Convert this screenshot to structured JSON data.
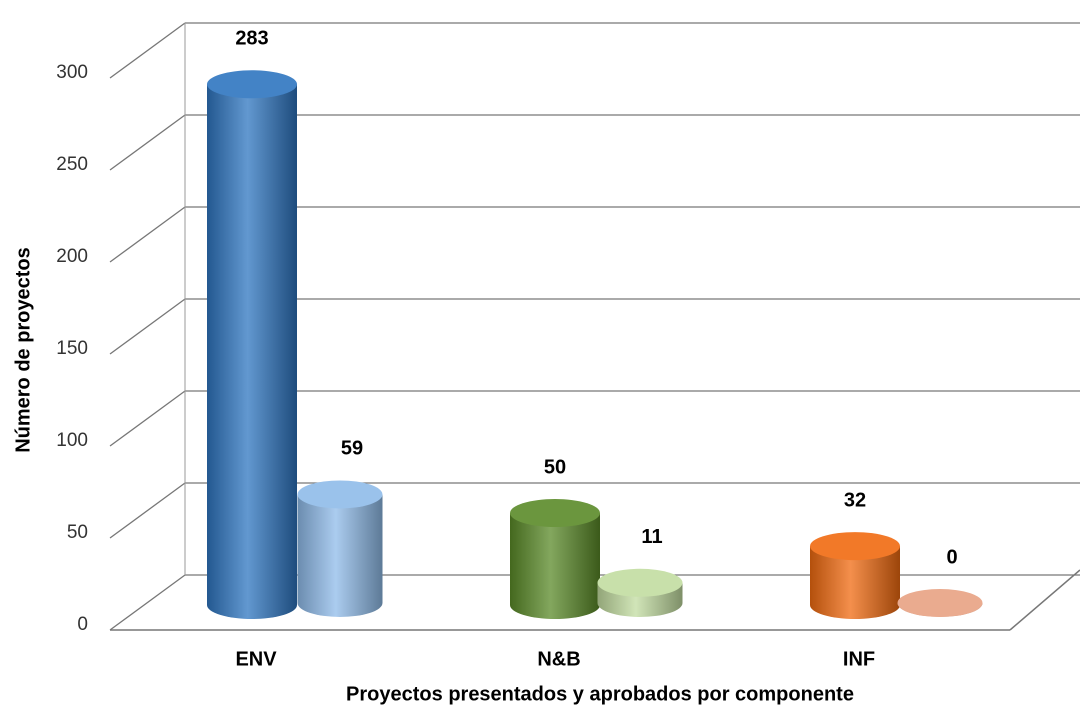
{
  "chart_data": {
    "type": "bar3d",
    "xlabel": "Proyectos presentados y aprobados por componente",
    "ylabel": "Número de proyectos",
    "categories": [
      "ENV",
      "N&B",
      "INF"
    ],
    "series": [
      {
        "colors": [
          "#2e75c0",
          "#5a8a28",
          "#f06a10"
        ],
        "values": [
          283,
          50,
          32
        ]
      },
      {
        "colors": [
          "#8fbbe9",
          "#c2dca0",
          "#e8a283"
        ],
        "values": [
          59,
          11,
          0
        ]
      }
    ],
    "ylim": [
      0,
      300
    ],
    "yticks": [
      0,
      50,
      100,
      150,
      200,
      250,
      300
    ],
    "grid": true
  }
}
